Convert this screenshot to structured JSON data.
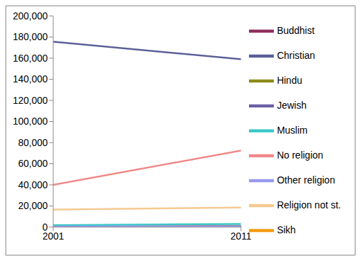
{
  "chart_data": {
    "type": "line",
    "categories": [
      "2001",
      "2011"
    ],
    "series": [
      {
        "name": "Christian",
        "color": "#5b5f97",
        "values": [
          175500,
          159000
        ]
      },
      {
        "name": "Buddhist",
        "color": "#8e2f5e",
        "values": [
          600,
          1000
        ]
      },
      {
        "name": "Hindu",
        "color": "#8b8b1a",
        "values": [
          400,
          800
        ]
      },
      {
        "name": "Jewish",
        "color": "#6b5fa5",
        "values": [
          400,
          300
        ]
      },
      {
        "name": "Muslim",
        "color": "#3cc8c8",
        "values": [
          1800,
          3000
        ]
      },
      {
        "name": "Sikh",
        "color": "#f39c12",
        "values": [
          100,
          200
        ]
      },
      {
        "name": "Other religion",
        "color": "#9999ee",
        "values": [
          500,
          800
        ]
      },
      {
        "name": "No religion",
        "color": "#f08888",
        "values": [
          40000,
          72500
        ]
      },
      {
        "name": "Religion not st.",
        "color": "#f5c990",
        "values": [
          16500,
          18500
        ]
      }
    ],
    "ylim": [
      0,
      200000
    ],
    "yticks": [
      0,
      {
        "value": 20000,
        "label": "20,000"
      },
      {
        "value": 40000,
        "label": "40,000"
      },
      {
        "value": 60000,
        "label": "60,000"
      },
      {
        "value": 80000,
        "label": "80,000"
      },
      {
        "value": 100000,
        "label": "100,000"
      },
      {
        "value": 120000,
        "label": "120,000"
      },
      {
        "value": 140000,
        "label": "140,000"
      },
      {
        "value": 160000,
        "label": "160,000"
      },
      {
        "value": 180000,
        "label": "180,000"
      },
      {
        "value": 200000,
        "label": "200,000"
      }
    ],
    "grid": false,
    "legend": "right",
    "marker": "none"
  }
}
